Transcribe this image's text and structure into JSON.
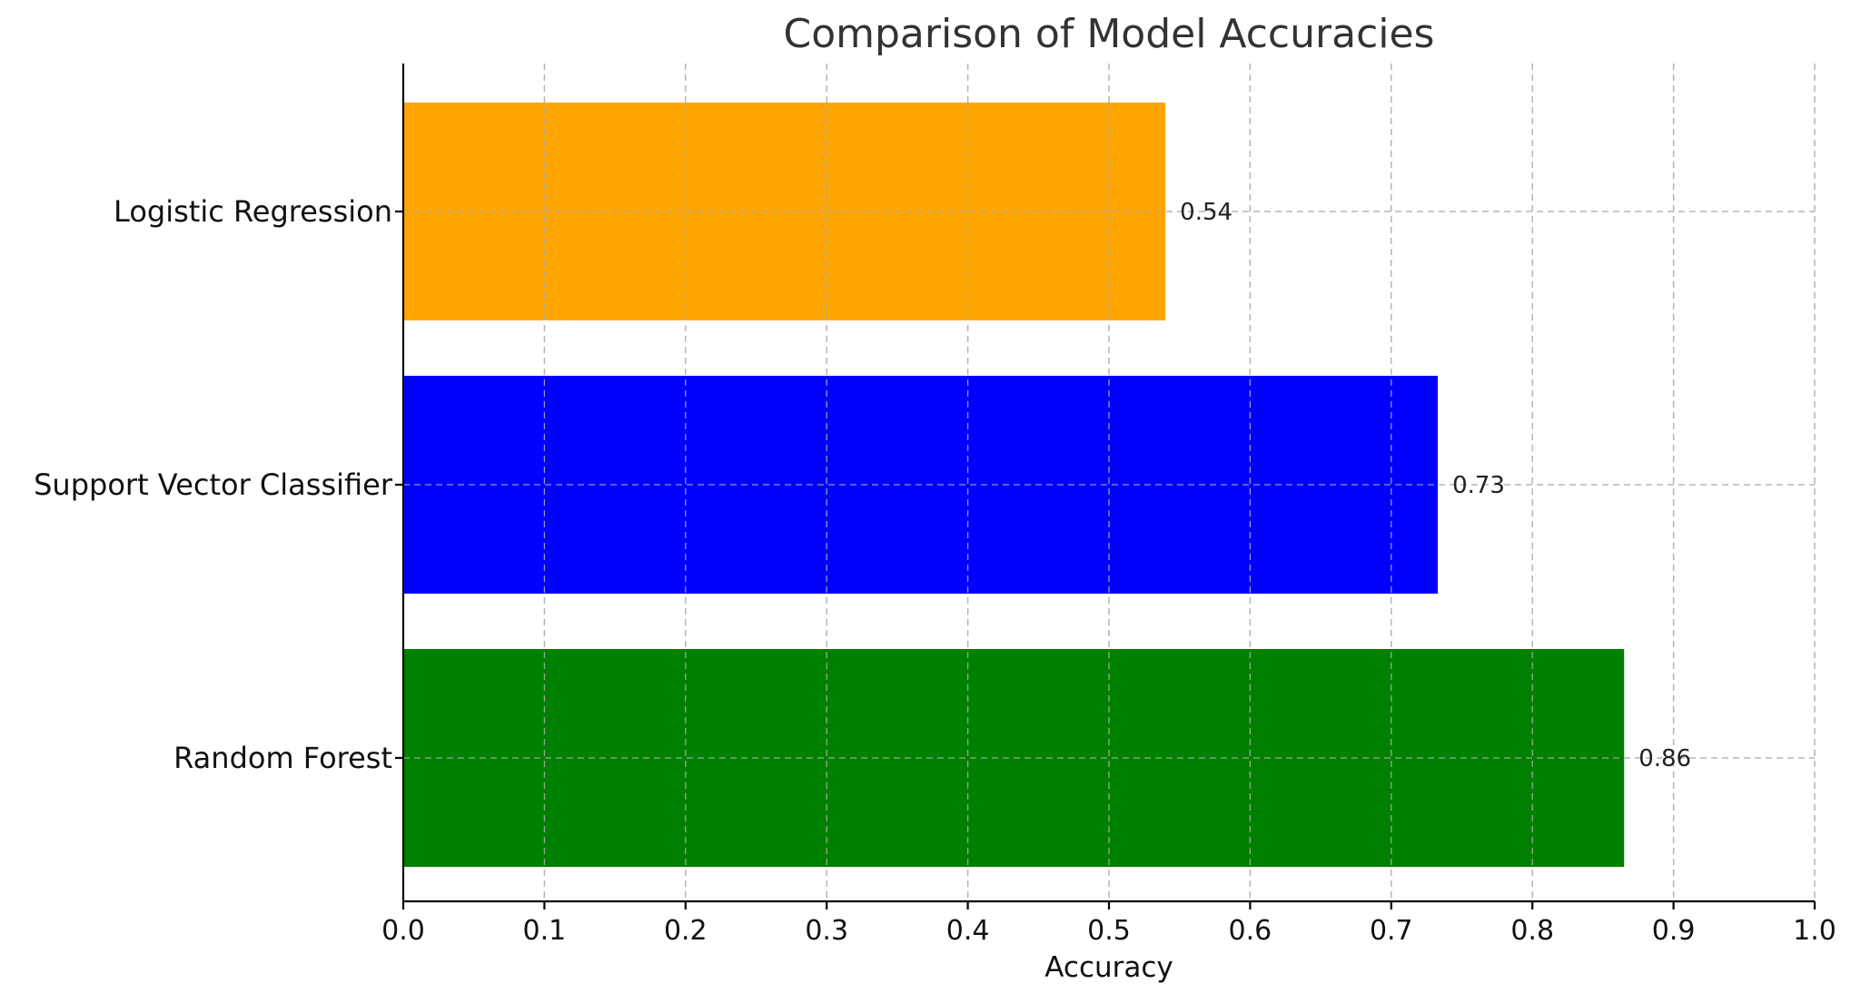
{
  "chart_data": {
    "type": "bar",
    "orientation": "horizontal",
    "title": "Comparison of Model Accuracies",
    "xlabel": "Accuracy",
    "ylabel": "",
    "xlim": [
      0,
      1.0
    ],
    "xticks": [
      "0.0",
      "0.1",
      "0.2",
      "0.3",
      "0.4",
      "0.5",
      "0.6",
      "0.7",
      "0.8",
      "0.9",
      "1.0"
    ],
    "grid": true,
    "legend": "none",
    "categories": [
      "Random Forest",
      "Support Vector Classifier",
      "Logistic Regression"
    ],
    "values": [
      0.865,
      0.733,
      0.54
    ],
    "value_labels": [
      "0.86",
      "0.73",
      "0.54"
    ],
    "colors": [
      "#008000",
      "#0000ff",
      "#ffa500"
    ]
  }
}
